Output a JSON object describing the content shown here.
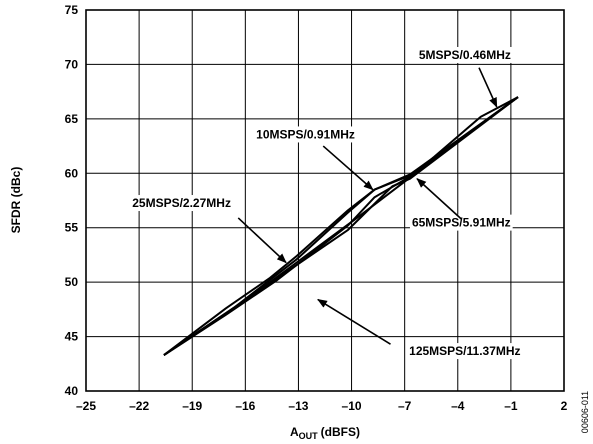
{
  "chart_data": {
    "type": "line",
    "title": "",
    "xlabel": "A",
    "xlabel_sub": "OUT",
    "xlabel_unit": "(dBFS)",
    "ylabel": "SFDR (dBc)",
    "xlim": [
      -25,
      2
    ],
    "ylim": [
      40,
      75
    ],
    "xticks": [
      -25,
      -22,
      -19,
      -16,
      -13,
      -10,
      -7,
      -4,
      -1,
      2
    ],
    "xtick_labels": [
      "–25",
      "–22",
      "–19",
      "–16",
      "–13",
      "–10",
      "–7",
      "–4",
      "–1",
      "2"
    ],
    "yticks": [
      40,
      45,
      50,
      55,
      60,
      65,
      70,
      75
    ],
    "ytick_labels": [
      "40",
      "45",
      "50",
      "55",
      "60",
      "65",
      "70",
      "75"
    ],
    "grid": true,
    "figure_id": "00606-011",
    "series": [
      {
        "name": "5MSPS/0.46MHz",
        "x": [
          -20.6,
          -16.6,
          -13.1,
          -9.7,
          -6.7,
          -2.7,
          -0.6
        ],
        "y": [
          43.3,
          47.6,
          51.8,
          55.9,
          59.6,
          65.2,
          67.0
        ]
      },
      {
        "name": "10MSPS/0.91MHz",
        "x": [
          -20.6,
          -16.6,
          -13.1,
          -10.2,
          -8.7,
          -6.7,
          -0.6
        ],
        "y": [
          43.3,
          47.7,
          52.1,
          56.4,
          58.5,
          59.8,
          67.0
        ]
      },
      {
        "name": "25MSPS/2.27MHz",
        "x": [
          -20.6,
          -17.1,
          -14.6,
          -13.1,
          -10.2,
          -8.7,
          -6.7,
          -0.6
        ],
        "y": [
          43.3,
          47.6,
          50.4,
          52.4,
          56.6,
          58.5,
          59.9,
          67.0
        ]
      },
      {
        "name": "65MSPS/5.91MHz",
        "x": [
          -20.6,
          -17.1,
          -14.2,
          -10.2,
          -8.7,
          -6.7,
          -0.6
        ],
        "y": [
          43.3,
          47.0,
          50.2,
          55.2,
          57.8,
          59.7,
          67.0
        ]
      },
      {
        "name": "125MSPS/11.37MHz",
        "x": [
          -20.6,
          -14.6,
          -10.2,
          -7.7,
          -6.7,
          -0.6
        ],
        "y": [
          43.3,
          49.9,
          54.8,
          58.8,
          59.5,
          67.0
        ]
      }
    ],
    "annotations": [
      {
        "text": "5MSPS/0.46MHz",
        "label_at": [
          -3.6,
          70.5
        ],
        "arrow_from": [
          -2.8,
          69.7
        ],
        "arrow_to": [
          -1.8,
          66.1
        ]
      },
      {
        "text": "10MSPS/0.91MHz",
        "label_at": [
          -12.6,
          63.2
        ],
        "arrow_from": [
          -11.6,
          62.5
        ],
        "arrow_to": [
          -8.8,
          58.5
        ]
      },
      {
        "text": "25MSPS/2.27MHz",
        "label_at": [
          -19.6,
          56.9
        ],
        "arrow_from": [
          -16.4,
          55.9
        ],
        "arrow_to": [
          -13.7,
          51.8
        ]
      },
      {
        "text": "65MSPS/5.91MHz",
        "label_at": [
          -3.8,
          55.1
        ],
        "arrow_from": [
          -3.8,
          55.8
        ],
        "arrow_to": [
          -6.3,
          59.5
        ]
      },
      {
        "text": "125MSPS/11.37MHz",
        "label_at": [
          -3.6,
          43.3
        ],
        "arrow_from": [
          -7.8,
          44.3
        ],
        "arrow_to": [
          -11.9,
          48.4
        ]
      }
    ]
  }
}
